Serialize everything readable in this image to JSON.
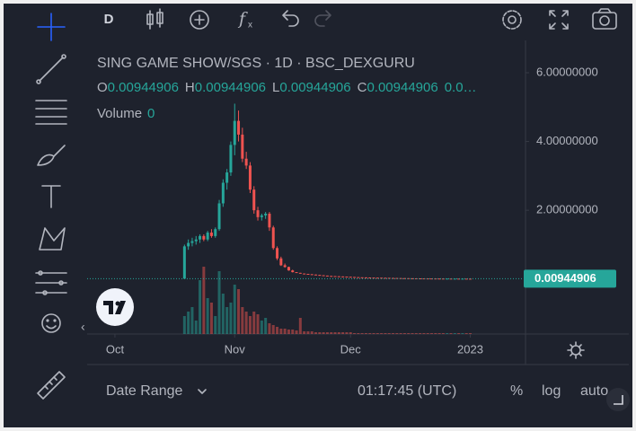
{
  "toolbar": {
    "interval": "D"
  },
  "header": {
    "title": "SING GAME SHOW/SGS · 1D · BSC_DEXGURU",
    "ohlc": [
      {
        "key": "O",
        "value": "0.00944906"
      },
      {
        "key": "H",
        "value": "0.00944906"
      },
      {
        "key": "L",
        "value": "0.00944906"
      },
      {
        "key": "C",
        "value": "0.00944906"
      }
    ],
    "change": "0.0…",
    "volume_label": "Volume",
    "volume_value": "0"
  },
  "chart_data": {
    "type": "candlestick",
    "x": [
      18,
      19,
      20,
      21,
      22,
      23,
      24,
      25,
      26,
      27,
      28,
      29,
      30,
      31,
      32,
      33,
      34,
      35,
      36,
      37,
      38,
      39,
      40,
      41,
      42,
      43,
      44,
      45,
      46,
      47,
      48,
      49,
      50,
      51,
      52,
      53,
      54,
      55,
      56,
      57,
      58,
      59,
      60,
      61,
      62,
      63,
      64,
      65,
      66,
      67,
      68,
      69,
      70,
      71,
      72,
      73,
      74,
      75,
      76,
      77,
      78,
      79,
      80,
      81,
      82,
      83,
      84,
      85,
      86,
      87,
      88,
      89,
      90,
      91,
      92
    ],
    "candles": [
      [
        0.01,
        1.0,
        0.01,
        0.95
      ],
      [
        0.95,
        1.15,
        0.85,
        1.05
      ],
      [
        1.05,
        1.2,
        0.95,
        1.1
      ],
      [
        1.1,
        1.25,
        1.0,
        1.15
      ],
      [
        1.15,
        1.3,
        1.05,
        1.25
      ],
      [
        1.25,
        1.3,
        1.1,
        1.15
      ],
      [
        1.15,
        1.4,
        1.1,
        1.35
      ],
      [
        1.35,
        1.45,
        1.2,
        1.25
      ],
      [
        1.25,
        1.5,
        1.2,
        1.45
      ],
      [
        1.45,
        2.3,
        1.4,
        2.2
      ],
      [
        2.2,
        2.9,
        2.1,
        2.8
      ],
      [
        2.8,
        3.2,
        2.6,
        3.1
      ],
      [
        3.1,
        4.0,
        3.0,
        3.9
      ],
      [
        3.9,
        5.1,
        3.6,
        4.6
      ],
      [
        4.6,
        4.9,
        4.0,
        4.2
      ],
      [
        4.2,
        4.4,
        3.4,
        3.5
      ],
      [
        3.5,
        3.7,
        3.2,
        3.3
      ],
      [
        3.3,
        3.4,
        2.5,
        2.6
      ],
      [
        2.6,
        2.7,
        1.9,
        2.0
      ],
      [
        2.0,
        2.1,
        1.7,
        1.8
      ],
      [
        1.8,
        1.9,
        1.7,
        1.85
      ],
      [
        1.85,
        1.95,
        1.75,
        1.9
      ],
      [
        1.9,
        1.95,
        1.4,
        1.5
      ],
      [
        1.5,
        1.55,
        0.85,
        0.9
      ],
      [
        0.9,
        0.95,
        0.55,
        0.6
      ],
      [
        0.6,
        0.65,
        0.38,
        0.4
      ],
      [
        0.4,
        0.45,
        0.33,
        0.35
      ],
      [
        0.35,
        0.36,
        0.24,
        0.25
      ],
      [
        0.25,
        0.27,
        0.19,
        0.2
      ],
      [
        0.2,
        0.2,
        0.18,
        0.18
      ],
      [
        0.18,
        0.18,
        0.16,
        0.16
      ],
      [
        0.16,
        0.16,
        0.15,
        0.15
      ],
      [
        0.15,
        0.15,
        0.14,
        0.14
      ],
      [
        0.14,
        0.14,
        0.13,
        0.13
      ],
      [
        0.13,
        0.13,
        0.12,
        0.12
      ],
      [
        0.12,
        0.12,
        0.11,
        0.11
      ],
      [
        0.11,
        0.11,
        0.1,
        0.1
      ],
      [
        0.1,
        0.1,
        0.09,
        0.09
      ],
      [
        0.09,
        0.09,
        0.085,
        0.085
      ],
      [
        0.085,
        0.085,
        0.08,
        0.08
      ],
      [
        0.08,
        0.08,
        0.075,
        0.075
      ],
      [
        0.075,
        0.075,
        0.07,
        0.07
      ],
      [
        0.07,
        0.07,
        0.065,
        0.065
      ],
      [
        0.065,
        0.065,
        0.06,
        0.06
      ],
      [
        0.06,
        0.06,
        0.055,
        0.055
      ],
      [
        0.055,
        0.055,
        0.05,
        0.05
      ],
      [
        0.05,
        0.05,
        0.048,
        0.048
      ],
      [
        0.048,
        0.048,
        0.045,
        0.045
      ],
      [
        0.045,
        0.045,
        0.042,
        0.042
      ],
      [
        0.042,
        0.042,
        0.04,
        0.04
      ],
      [
        0.04,
        0.04,
        0.038,
        0.038
      ],
      [
        0.038,
        0.038,
        0.036,
        0.036
      ],
      [
        0.036,
        0.036,
        0.034,
        0.034
      ],
      [
        0.034,
        0.034,
        0.032,
        0.032
      ],
      [
        0.032,
        0.032,
        0.03,
        0.03
      ],
      [
        0.03,
        0.03,
        0.028,
        0.028
      ],
      [
        0.028,
        0.028,
        0.026,
        0.026
      ],
      [
        0.026,
        0.026,
        0.024,
        0.024
      ],
      [
        0.024,
        0.024,
        0.022,
        0.022
      ],
      [
        0.022,
        0.022,
        0.02,
        0.02
      ],
      [
        0.02,
        0.02,
        0.019,
        0.019
      ],
      [
        0.019,
        0.019,
        0.018,
        0.018
      ],
      [
        0.018,
        0.018,
        0.017,
        0.017
      ],
      [
        0.017,
        0.017,
        0.016,
        0.016
      ],
      [
        0.016,
        0.016,
        0.015,
        0.015
      ],
      [
        0.015,
        0.015,
        0.014,
        0.014
      ],
      [
        0.014,
        0.014,
        0.013,
        0.013
      ],
      [
        0.013,
        0.013,
        0.012,
        0.012
      ],
      [
        0.012,
        0.012,
        0.012,
        0.012
      ],
      [
        0.012,
        0.012,
        0.011,
        0.011
      ],
      [
        0.011,
        0.011,
        0.011,
        0.011
      ],
      [
        0.011,
        0.011,
        0.01,
        0.01
      ],
      [
        0.01,
        0.01,
        0.01,
        0.01
      ],
      [
        0.01,
        0.01,
        0.0095,
        0.0095
      ],
      [
        0.0095,
        0.0095,
        0.00944906,
        0.00944906
      ]
    ],
    "volume": [
      20,
      25,
      30,
      15,
      60,
      75,
      40,
      35,
      20,
      70,
      45,
      30,
      35,
      55,
      50,
      30,
      25,
      20,
      25,
      22,
      15,
      18,
      12,
      10,
      8,
      6,
      6,
      5,
      5,
      4,
      18,
      3,
      3,
      3,
      2,
      2,
      2,
      2,
      2,
      2,
      2,
      2,
      2,
      2,
      1,
      1,
      1,
      1,
      1,
      1,
      1,
      1,
      1,
      1,
      1,
      1,
      1,
      1,
      1,
      1,
      1,
      1,
      1,
      1,
      1,
      1,
      1,
      1,
      1,
      1,
      1,
      1,
      1,
      1,
      1
    ],
    "xlim": [
      -7.2,
      106.3
    ],
    "xticks": [
      {
        "value": 0,
        "label": "Oct"
      },
      {
        "value": 31,
        "label": "Nov"
      },
      {
        "value": 61,
        "label": "Dec"
      },
      {
        "value": 92,
        "label": "2023"
      }
    ],
    "ylim": [
      -1.6,
      6.94
    ],
    "yticks": [
      {
        "value": 2,
        "label": "2.00000000"
      },
      {
        "value": 4,
        "label": "4.00000000"
      },
      {
        "value": 6,
        "label": "6.00000000"
      }
    ],
    "last_price": 0.00944906,
    "up_color": "#26a69a",
    "down_color": "#ef5350"
  },
  "bottom_bar": {
    "date_range": "Date Range",
    "time": "01:17:45 (UTC)",
    "percent": "%",
    "log": "log",
    "auto": "auto"
  }
}
